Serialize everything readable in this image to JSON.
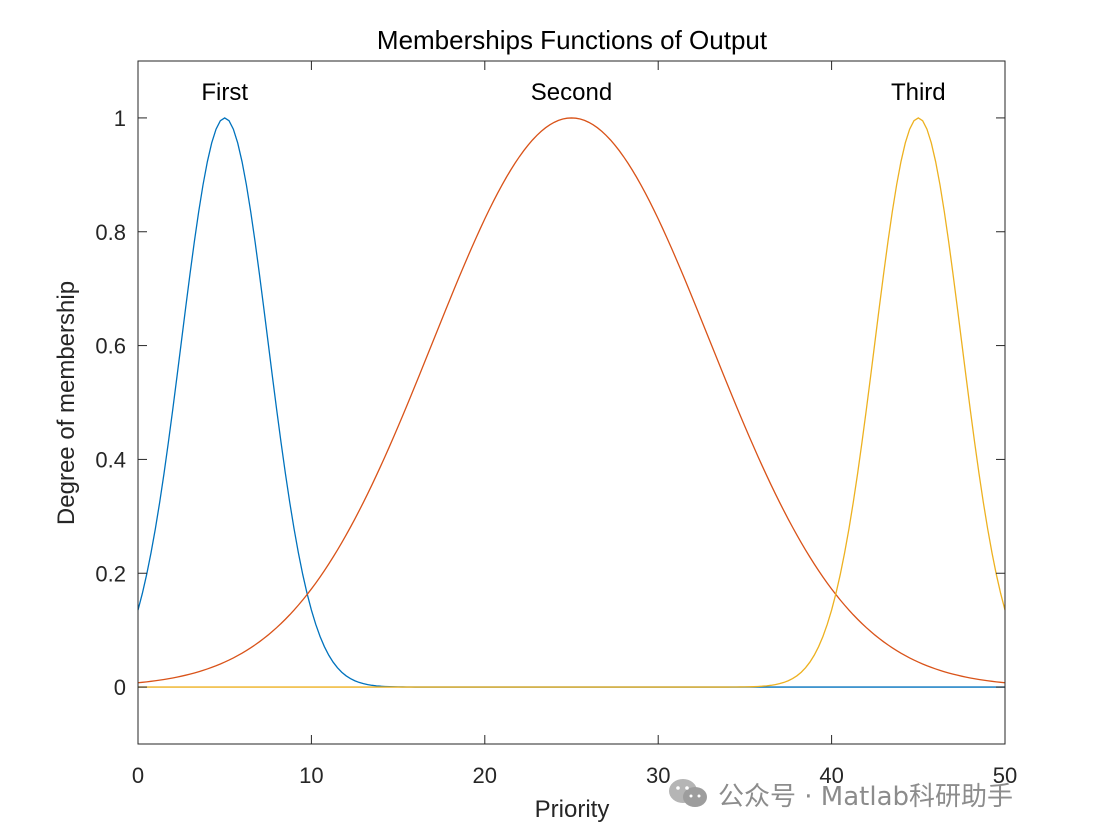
{
  "chart_data": {
    "type": "line",
    "title": "Memberships Functions of Output",
    "xlabel": "Priority",
    "ylabel": "Degree of membership",
    "xlim": [
      0,
      50
    ],
    "ylim": [
      -0.1,
      1.1
    ],
    "xticks": [
      0,
      10,
      20,
      30,
      40,
      50
    ],
    "xtick_labels": [
      "0",
      "10",
      "20",
      "30",
      "40",
      "50"
    ],
    "yticks": [
      0,
      0.2,
      0.4,
      0.6,
      0.8,
      1
    ],
    "ytick_labels": [
      "0",
      "0.2",
      "0.4",
      "0.6",
      "0.8",
      "1"
    ],
    "grid": false,
    "series": [
      {
        "name": "First",
        "shape": "gaussian",
        "center": 5,
        "sigma": 2.5,
        "color": "#0072BD"
      },
      {
        "name": "Second",
        "shape": "gaussian",
        "center": 25,
        "sigma": 8,
        "color": "#D95319"
      },
      {
        "name": "Third",
        "shape": "gaussian",
        "center": 45,
        "sigma": 2.5,
        "color": "#EDB120"
      }
    ]
  },
  "watermark": {
    "text": "公众号 · Matlab科研助手",
    "icon": "wechat-icon"
  }
}
